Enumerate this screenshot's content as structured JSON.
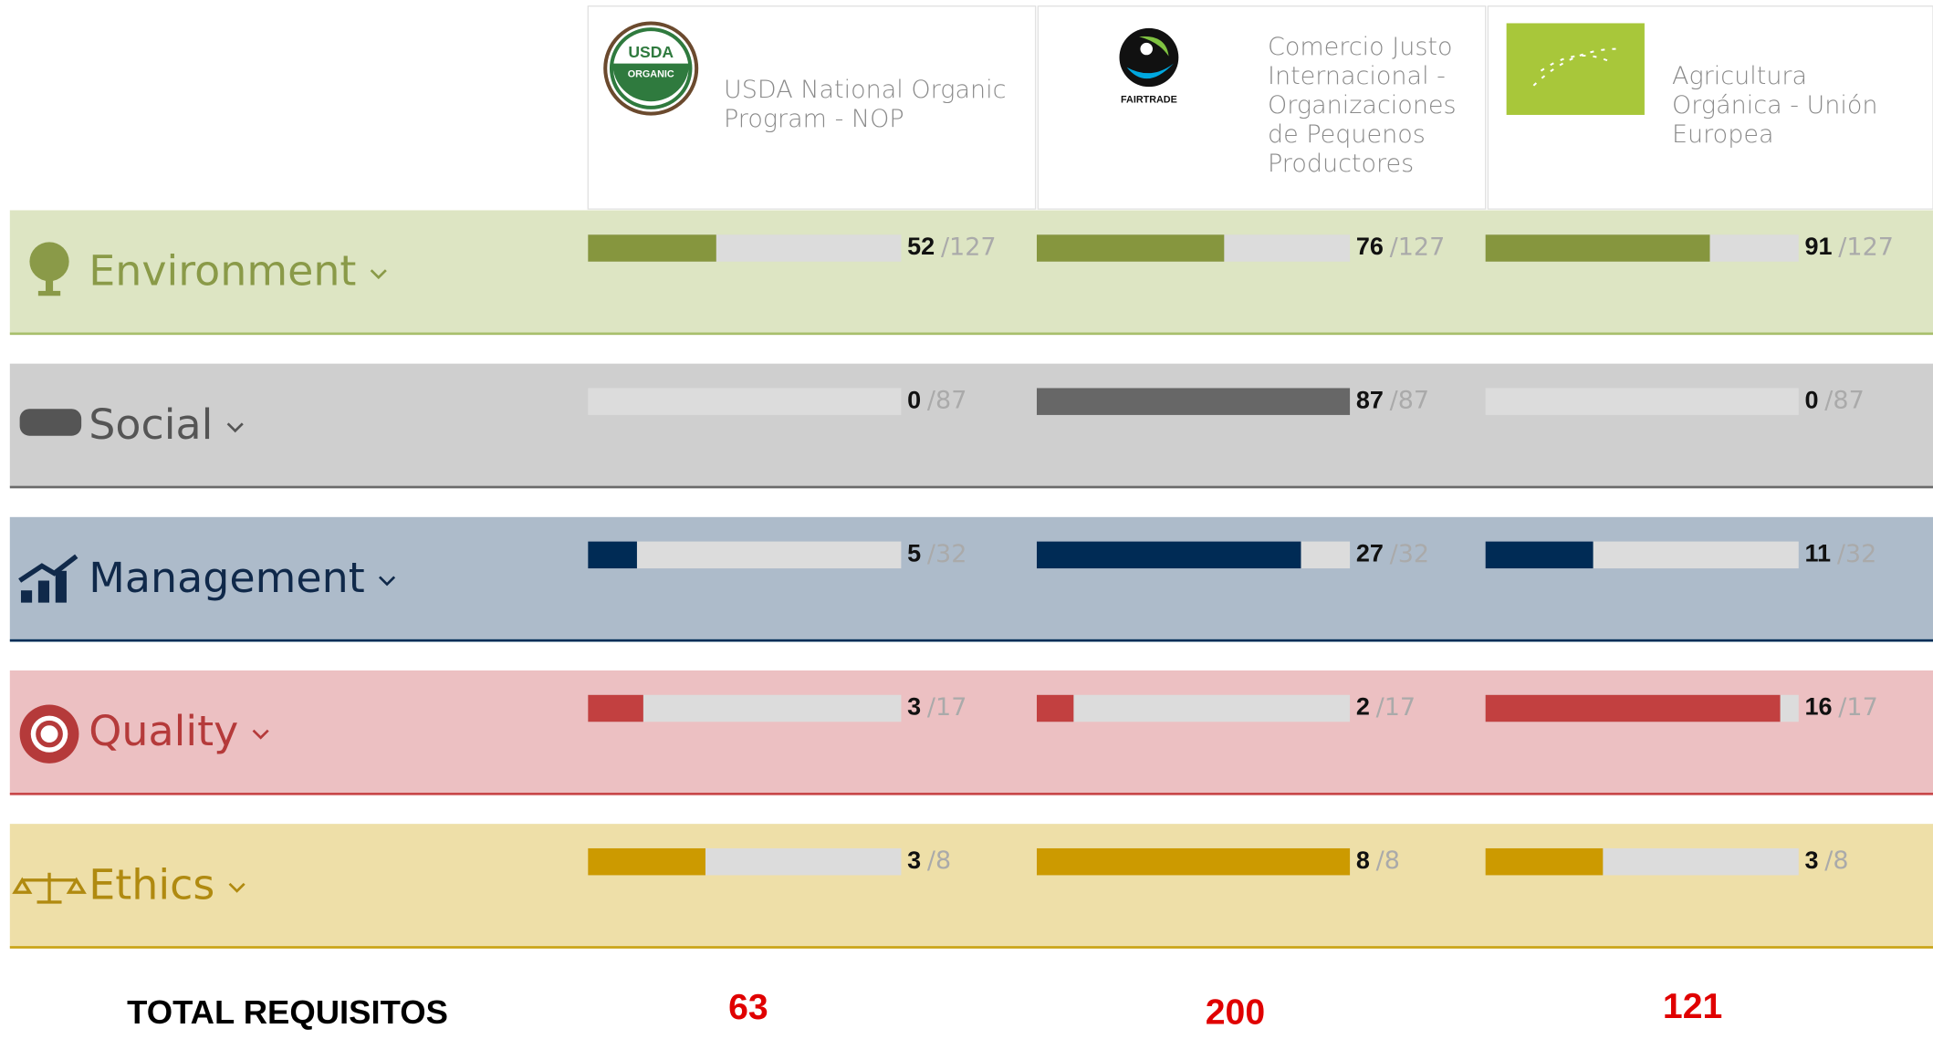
{
  "standards": [
    {
      "name": "USDA National Organic Program - NOP",
      "logo_text": [
        "USDA",
        "ORGANIC"
      ]
    },
    {
      "name": "Comercio Justo Internacional - Organizaciones de Pequenos Productores",
      "logo_text": [
        "FAIRTRADE"
      ]
    },
    {
      "name": "Agricultura Orgánica - Unión Europea",
      "logo_text": []
    }
  ],
  "categories": [
    {
      "name": "Environment",
      "values": [
        52,
        76,
        91
      ],
      "max": 127,
      "max_label": "/127",
      "color": "#86963e",
      "band_color": "#dde5c3",
      "border_color": "#a8bf6c",
      "text_color": "#8a9a48"
    },
    {
      "name": "Social",
      "values": [
        0,
        87,
        0
      ],
      "max": 87,
      "max_label": "/87",
      "color": "#676767",
      "band_color": "#cfcfcf",
      "border_color": "#6a6a6a",
      "text_color": "#555555"
    },
    {
      "name": "Management",
      "values": [
        5,
        27,
        11
      ],
      "max": 32,
      "max_label": "/32",
      "color": "#002b55",
      "band_color": "#adbbca",
      "border_color": "#002d57",
      "text_color": "#10294a"
    },
    {
      "name": "Quality",
      "values": [
        3,
        2,
        16
      ],
      "max": 17,
      "max_label": "/17",
      "color": "#c24040",
      "band_color": "#ecc0c2",
      "border_color": "#c8484a",
      "text_color": "#b53a3a"
    },
    {
      "name": "Ethics",
      "values": [
        3,
        8,
        3
      ],
      "max": 8,
      "max_label": "/8",
      "color": "#cc9a00",
      "band_color": "#eedfa8",
      "border_color": "#c9a416",
      "text_color": "#b08a10"
    }
  ],
  "total": {
    "label": "TOTAL REQUISITOS",
    "values": [
      63,
      200,
      121
    ],
    "color": "#e00000"
  }
}
